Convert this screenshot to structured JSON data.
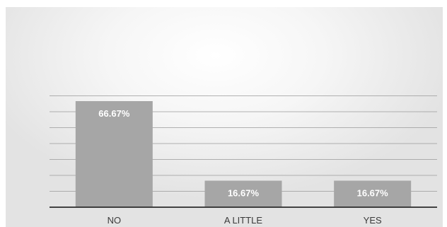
{
  "chart_data": {
    "type": "bar",
    "categories": [
      "NO",
      "A LITTLE",
      "YES"
    ],
    "values": [
      66.67,
      16.67,
      16.67
    ],
    "data_labels": [
      "66.67%",
      "16.67%",
      "16.67%"
    ],
    "title": "",
    "xlabel": "",
    "ylabel": "",
    "ylim": [
      0,
      70
    ],
    "grid": true,
    "legend": "none",
    "colors": {
      "bar": "#a6a6a6",
      "gridline": "#9a9a9a",
      "baseline": "#2b2b2b",
      "label_text": "#ffffff",
      "category_text": "#3a3a3a"
    }
  }
}
